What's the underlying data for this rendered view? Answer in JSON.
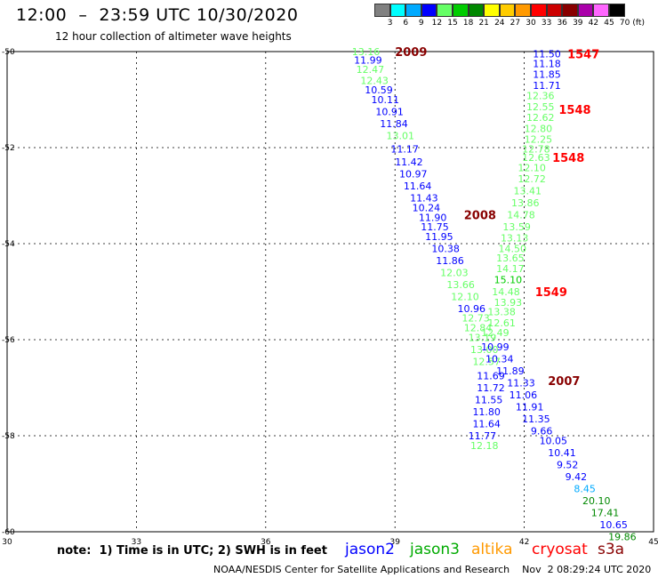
{
  "header": {
    "title": "12:00  –  23:59 UTC 10/30/2020",
    "subtitle": "12 hour collection of altimeter wave heights"
  },
  "color_scale": {
    "labels": [
      "3",
      "6",
      "9",
      "12",
      "15",
      "18",
      "21",
      "24",
      "27",
      "30",
      "33",
      "36",
      "39",
      "42",
      "45",
      "70",
      "(ft)"
    ],
    "colors": [
      "#808080",
      "#00ffff",
      "#00aaff",
      "#0000ff",
      "#66ff66",
      "#00cc00",
      "#008800",
      "#ffff00",
      "#ffcc00",
      "#ff9900",
      "#ff0000",
      "#cc0000",
      "#880000",
      "#aa00aa",
      "#ff66ff",
      "#000000"
    ]
  },
  "axes": {
    "x_ticks": [
      {
        "label": "30",
        "v": 30
      },
      {
        "label": "33",
        "v": 33
      },
      {
        "label": "36",
        "v": 36
      },
      {
        "label": "39",
        "v": 39
      },
      {
        "label": "42",
        "v": 42
      },
      {
        "label": "45",
        "v": 45
      }
    ],
    "y_ticks": [
      {
        "label": "-50",
        "v": -50
      },
      {
        "label": "-52",
        "v": -52
      },
      {
        "label": "-54",
        "v": -54
      },
      {
        "label": "-56",
        "v": -56
      },
      {
        "label": "-58",
        "v": -58
      },
      {
        "label": "-60",
        "v": -60
      }
    ]
  },
  "track_labels": [
    {
      "text": "2009",
      "lon": 39.0,
      "lat": -50.0,
      "color": "#880000"
    },
    {
      "text": "2008",
      "lon": 40.6,
      "lat": -53.4,
      "color": "#880000"
    },
    {
      "text": "1547",
      "lon": 43.0,
      "lat": -50.05,
      "color": "#ff0000"
    },
    {
      "text": "1548",
      "lon": 42.8,
      "lat": -51.2,
      "color": "#ff0000"
    },
    {
      "text": "1548",
      "lon": 42.65,
      "lat": -52.2,
      "color": "#ff0000"
    },
    {
      "text": "1549",
      "lon": 42.25,
      "lat": -55.0,
      "color": "#ff0000"
    },
    {
      "text": "2007",
      "lon": 42.55,
      "lat": -56.85,
      "color": "#880000"
    }
  ],
  "observations": [
    {
      "v": "13.16",
      "lon": 38.0,
      "lat": -50.0,
      "color": "#66ff66"
    },
    {
      "v": "11.99",
      "lon": 38.05,
      "lat": -50.18,
      "color": "#0000ff"
    },
    {
      "v": "12.47",
      "lon": 38.1,
      "lat": -50.37,
      "color": "#66ff66"
    },
    {
      "v": "12.43",
      "lon": 38.2,
      "lat": -50.6,
      "color": "#66ff66"
    },
    {
      "v": "10.59",
      "lon": 38.3,
      "lat": -50.8,
      "color": "#0000ff"
    },
    {
      "v": "10.11",
      "lon": 38.45,
      "lat": -51.0,
      "color": "#0000ff"
    },
    {
      "v": "10.91",
      "lon": 38.55,
      "lat": -51.25,
      "color": "#0000ff"
    },
    {
      "v": "11.84",
      "lon": 38.65,
      "lat": -51.5,
      "color": "#0000ff"
    },
    {
      "v": "13.01",
      "lon": 38.8,
      "lat": -51.75,
      "color": "#66ff66"
    },
    {
      "v": "11.17",
      "lon": 38.9,
      "lat": -52.03,
      "color": "#0000ff"
    },
    {
      "v": "11.42",
      "lon": 39.0,
      "lat": -52.3,
      "color": "#0000ff"
    },
    {
      "v": "10.97",
      "lon": 39.1,
      "lat": -52.55,
      "color": "#0000ff"
    },
    {
      "v": "11.64",
      "lon": 39.2,
      "lat": -52.8,
      "color": "#0000ff"
    },
    {
      "v": "11.43",
      "lon": 39.35,
      "lat": -53.05,
      "color": "#0000ff"
    },
    {
      "v": "10.24",
      "lon": 39.4,
      "lat": -53.25,
      "color": "#0000ff"
    },
    {
      "v": "11.90",
      "lon": 39.55,
      "lat": -53.45,
      "color": "#0000ff"
    },
    {
      "v": "11.75",
      "lon": 39.6,
      "lat": -53.65,
      "color": "#0000ff"
    },
    {
      "v": "11.95",
      "lon": 39.7,
      "lat": -53.85,
      "color": "#0000ff"
    },
    {
      "v": "10.38",
      "lon": 39.85,
      "lat": -54.1,
      "color": "#0000ff"
    },
    {
      "v": "11.86",
      "lon": 39.95,
      "lat": -54.35,
      "color": "#0000ff"
    },
    {
      "v": "12.03",
      "lon": 40.05,
      "lat": -54.6,
      "color": "#66ff66"
    },
    {
      "v": "13.66",
      "lon": 40.2,
      "lat": -54.85,
      "color": "#66ff66"
    },
    {
      "v": "12.10",
      "lon": 40.3,
      "lat": -55.1,
      "color": "#66ff66"
    },
    {
      "v": "10.96",
      "lon": 40.45,
      "lat": -55.35,
      "color": "#0000ff"
    },
    {
      "v": "12.73",
      "lon": 40.55,
      "lat": -55.55,
      "color": "#66ff66"
    },
    {
      "v": "12.84",
      "lon": 40.6,
      "lat": -55.75,
      "color": "#66ff66"
    },
    {
      "v": "13.19",
      "lon": 40.7,
      "lat": -55.95,
      "color": "#66ff66"
    },
    {
      "v": "13.00",
      "lon": 40.75,
      "lat": -56.2,
      "color": "#66ff66"
    },
    {
      "v": "12.57",
      "lon": 40.8,
      "lat": -56.45,
      "color": "#66ff66"
    },
    {
      "v": "11.69",
      "lon": 40.9,
      "lat": -56.75,
      "color": "#0000ff"
    },
    {
      "v": "11.72",
      "lon": 40.9,
      "lat": -57.0,
      "color": "#0000ff"
    },
    {
      "v": "11.55",
      "lon": 40.85,
      "lat": -57.25,
      "color": "#0000ff"
    },
    {
      "v": "11.80",
      "lon": 40.8,
      "lat": -57.5,
      "color": "#0000ff"
    },
    {
      "v": "11.64",
      "lon": 40.8,
      "lat": -57.75,
      "color": "#0000ff"
    },
    {
      "v": "11.77",
      "lon": 40.7,
      "lat": -58.0,
      "color": "#0000ff"
    },
    {
      "v": "12.18",
      "lon": 40.75,
      "lat": -58.2,
      "color": "#66ff66"
    },
    {
      "v": "11.50",
      "lon": 42.2,
      "lat": -50.05,
      "color": "#0000ff"
    },
    {
      "v": "11.18",
      "lon": 42.2,
      "lat": -50.25,
      "color": "#0000ff"
    },
    {
      "v": "11.85",
      "lon": 42.2,
      "lat": -50.47,
      "color": "#0000ff"
    },
    {
      "v": "11.71",
      "lon": 42.2,
      "lat": -50.7,
      "color": "#0000ff"
    },
    {
      "v": "12.36",
      "lon": 42.05,
      "lat": -50.92,
      "color": "#66ff66"
    },
    {
      "v": "12.55",
      "lon": 42.05,
      "lat": -51.15,
      "color": "#66ff66"
    },
    {
      "v": "12.62",
      "lon": 42.05,
      "lat": -51.37,
      "color": "#66ff66"
    },
    {
      "v": "12.80",
      "lon": 42.0,
      "lat": -51.6,
      "color": "#66ff66"
    },
    {
      "v": "12.25",
      "lon": 42.0,
      "lat": -51.82,
      "color": "#66ff66"
    },
    {
      "v": "12.78",
      "lon": 41.95,
      "lat": -52.03,
      "color": "#66ff66"
    },
    {
      "v": "12.63",
      "lon": 41.95,
      "lat": -52.2,
      "color": "#66ff66"
    },
    {
      "v": "12.10",
      "lon": 41.85,
      "lat": -52.42,
      "color": "#66ff66"
    },
    {
      "v": "12.72",
      "lon": 41.85,
      "lat": -52.65,
      "color": "#66ff66"
    },
    {
      "v": "13.41",
      "lon": 41.75,
      "lat": -52.9,
      "color": "#66ff66"
    },
    {
      "v": "13.86",
      "lon": 41.7,
      "lat": -53.15,
      "color": "#66ff66"
    },
    {
      "v": "14.78",
      "lon": 41.6,
      "lat": -53.4,
      "color": "#66ff66"
    },
    {
      "v": "13.59",
      "lon": 41.5,
      "lat": -53.65,
      "color": "#66ff66"
    },
    {
      "v": "13.13",
      "lon": 41.45,
      "lat": -53.88,
      "color": "#66ff66"
    },
    {
      "v": "14.50",
      "lon": 41.4,
      "lat": -54.1,
      "color": "#66ff66"
    },
    {
      "v": "13.65",
      "lon": 41.35,
      "lat": -54.3,
      "color": "#66ff66"
    },
    {
      "v": "14.17",
      "lon": 41.35,
      "lat": -54.52,
      "color": "#66ff66"
    },
    {
      "v": "15.10",
      "lon": 41.3,
      "lat": -54.75,
      "color": "#00cc00"
    },
    {
      "v": "14.48",
      "lon": 41.25,
      "lat": -55.0,
      "color": "#66ff66"
    },
    {
      "v": "13.93",
      "lon": 41.3,
      "lat": -55.22,
      "color": "#66ff66"
    },
    {
      "v": "13.38",
      "lon": 41.15,
      "lat": -55.42,
      "color": "#66ff66"
    },
    {
      "v": "12.61",
      "lon": 41.15,
      "lat": -55.65,
      "color": "#66ff66"
    },
    {
      "v": "12.49",
      "lon": 41.0,
      "lat": -55.85,
      "color": "#66ff66"
    },
    {
      "v": "10.99",
      "lon": 41.0,
      "lat": -56.15,
      "color": "#0000ff"
    },
    {
      "v": "10.34",
      "lon": 41.1,
      "lat": -56.4,
      "color": "#0000ff"
    },
    {
      "v": "11.89",
      "lon": 41.35,
      "lat": -56.65,
      "color": "#0000ff"
    },
    {
      "v": "11.33",
      "lon": 41.6,
      "lat": -56.9,
      "color": "#0000ff"
    },
    {
      "v": "11.06",
      "lon": 41.65,
      "lat": -57.15,
      "color": "#0000ff"
    },
    {
      "v": "11.91",
      "lon": 41.8,
      "lat": -57.4,
      "color": "#0000ff"
    },
    {
      "v": "11.35",
      "lon": 41.95,
      "lat": -57.65,
      "color": "#0000ff"
    },
    {
      "v": "9.66",
      "lon": 42.15,
      "lat": -57.9,
      "color": "#0000ff"
    },
    {
      "v": "10.05",
      "lon": 42.35,
      "lat": -58.1,
      "color": "#0000ff"
    },
    {
      "v": "10.41",
      "lon": 42.55,
      "lat": -58.35,
      "color": "#0000ff"
    },
    {
      "v": "9.52",
      "lon": 42.75,
      "lat": -58.6,
      "color": "#0000ff"
    },
    {
      "v": "9.42",
      "lon": 42.95,
      "lat": -58.85,
      "color": "#0000ff"
    },
    {
      "v": "8.45",
      "lon": 43.15,
      "lat": -59.1,
      "color": "#00aaff"
    },
    {
      "v": "20.10",
      "lon": 43.35,
      "lat": -59.35,
      "color": "#008800"
    },
    {
      "v": "17.41",
      "lon": 43.55,
      "lat": -59.6,
      "color": "#008800"
    },
    {
      "v": "10.65",
      "lon": 43.75,
      "lat": -59.85,
      "color": "#0000ff"
    },
    {
      "v": "19.86",
      "lon": 43.95,
      "lat": -60.1,
      "color": "#008800"
    }
  ],
  "footer": {
    "note": "note:  1) Time is in UTC; 2) SWH is in feet",
    "satellites": [
      {
        "name": "jason2",
        "color": "#0000ff"
      },
      {
        "name": "jason3",
        "color": "#00aa00"
      },
      {
        "name": "altika",
        "color": "#ff9900"
      },
      {
        "name": "cryosat",
        "color": "#ff0000"
      },
      {
        "name": "s3a",
        "color": "#880000"
      }
    ],
    "credit": "NOAA/NESDIS Center for Satellite Applications and Research    Nov  2 08:29:24 UTC 2020"
  }
}
